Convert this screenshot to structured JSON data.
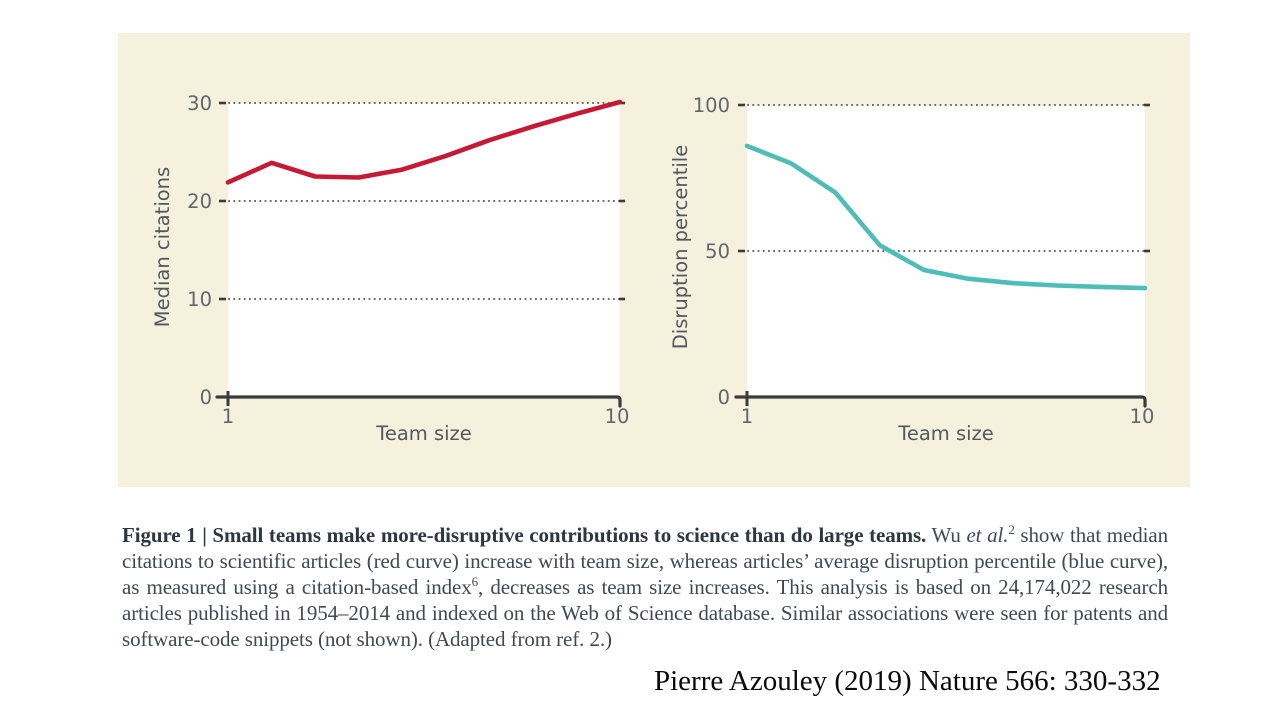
{
  "figure_panel": {
    "background": "#f5f1dd"
  },
  "chart_data": [
    {
      "type": "line",
      "series_name": "red curve",
      "ylabel": "Median citations",
      "xlabel": "Team size",
      "x": [
        1,
        2,
        3,
        4,
        5,
        6,
        7,
        8,
        9,
        10
      ],
      "values": [
        21.9,
        23.9,
        22.5,
        22.4,
        23.2,
        24.6,
        26.2,
        27.6,
        28.9,
        30.1
      ],
      "color": "#c41a35",
      "ylim": [
        0,
        30
      ],
      "yticks": [
        0,
        10,
        20,
        30
      ],
      "xticks": [
        1,
        10
      ],
      "grid": "horizontal dotted lines at 10, 20, 30",
      "legend": "none"
    },
    {
      "type": "line",
      "series_name": "blue curve",
      "ylabel": "Disruption percentile",
      "xlabel": "Team size",
      "x": [
        1,
        2,
        3,
        4,
        5,
        6,
        7,
        8,
        9,
        10
      ],
      "values": [
        86,
        80,
        70,
        52,
        43.5,
        40.5,
        39,
        38.2,
        37.7,
        37.3
      ],
      "color": "#4fbdb7",
      "ylim": [
        0,
        100
      ],
      "yticks": [
        0,
        50,
        100
      ],
      "xticks": [
        1,
        10
      ],
      "grid": "horizontal dotted lines at 50, 100",
      "legend": "none"
    }
  ],
  "caption": {
    "bold": "Figure 1 | Small teams make more-disruptive contributions to science than do large teams.",
    "t1": "  Wu ",
    "italic1": "et al.",
    "sup1": "2",
    "t2": " show that median citations to scientific articles (red curve) increase with team size, whereas articles’ average disruption percentile (blue curve), as measured using a citation-based index",
    "sup2": "6",
    "t3": ", decreases as team size increases. This analysis is based on 24,174,022 research articles published in 1954–2014 and indexed on the Web of Science database. Similar associations were seen for patents and software-code snippets (not shown). (Adapted from ref. 2.)"
  },
  "attribution": "Pierre Azouley (2019) Nature 566: 330-332",
  "colors": {
    "panel_bg": "#f5f1dd",
    "red_curve": "#c41a35",
    "teal_curve": "#4fbdb7",
    "axis": "#3b3b3b",
    "grid_dots": "#585858",
    "tick_label": "#60666e",
    "axis_title": "#51585f",
    "caption_text": "#3e4a55"
  }
}
